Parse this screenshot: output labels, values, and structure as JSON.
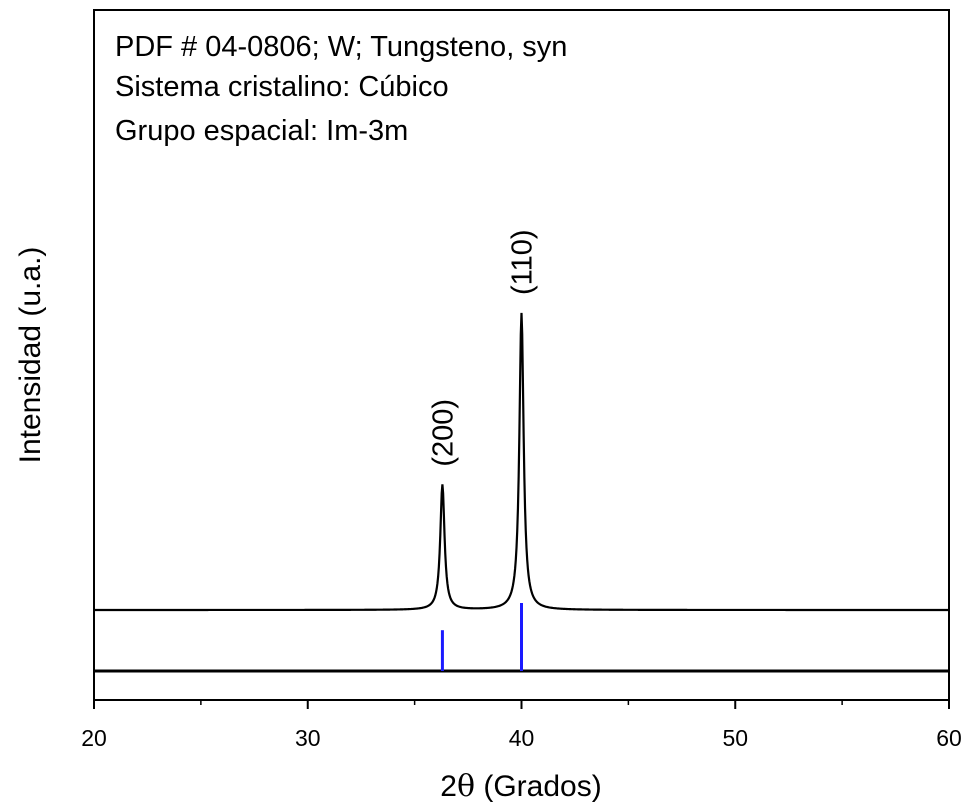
{
  "chart_data": {
    "type": "line",
    "xlabel_prefix": "2",
    "xlabel_theta": "θ",
    "xlabel_suffix": " (Grados)",
    "ylabel": "Intensidad (u.a.)",
    "xlim": [
      20,
      60
    ],
    "x_ticks": [
      20,
      30,
      40,
      50,
      60
    ],
    "annotations": [
      "PDF # 04-0806; W; Tungsteno, syn",
      "Sistema cristalino: Cúbico",
      "Grupo espacial: Im-3m"
    ],
    "peaks": [
      {
        "label": "(200)",
        "x": 36.3,
        "relative_height": 0.38,
        "reference_line": 0.6
      },
      {
        "label": "(110)",
        "x": 40.0,
        "relative_height": 0.9,
        "reference_line": 1.0
      }
    ],
    "pattern_color": "#000000",
    "reference_color": "#1a1aff",
    "grid": false
  }
}
